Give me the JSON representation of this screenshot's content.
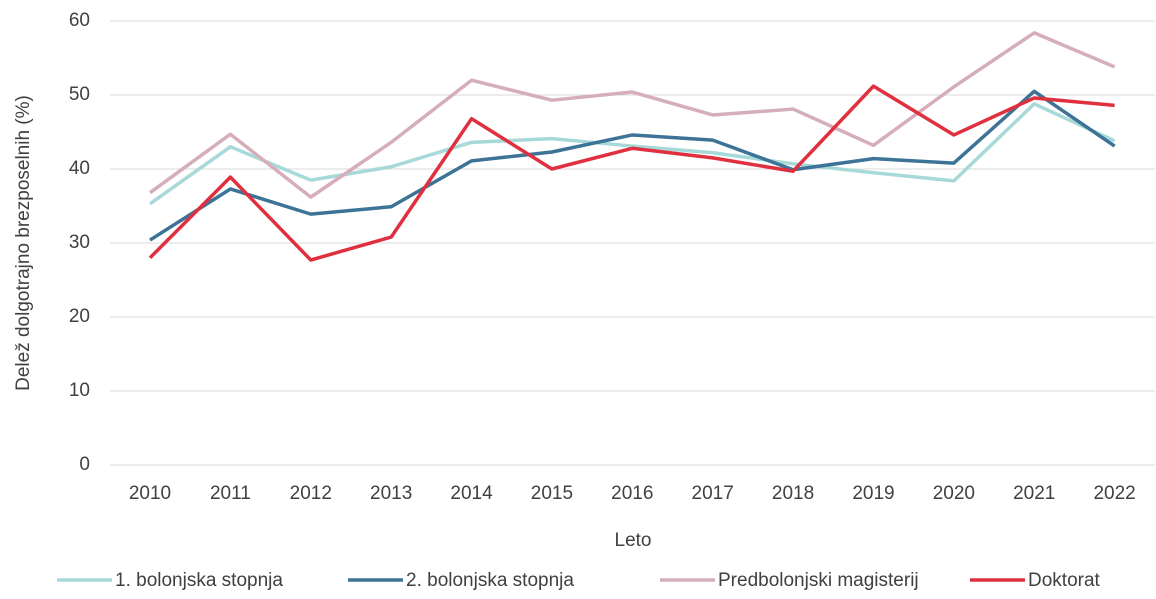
{
  "chart_data": {
    "type": "line",
    "y_label": "Delež dolgotrajno brezposelnih (%)",
    "x_label": "Leto",
    "categories": [
      "2010",
      "2011",
      "2012",
      "2013",
      "2014",
      "2015",
      "2016",
      "2017",
      "2018",
      "2019",
      "2020",
      "2021",
      "2022"
    ],
    "series": [
      {
        "name": "1. bolonjska stopnja",
        "color": "#a6d9d8",
        "values": [
          35.3,
          43.0,
          38.5,
          40.3,
          43.6,
          44.1,
          43.1,
          42.2,
          40.7,
          39.5,
          38.4,
          48.8,
          43.8
        ]
      },
      {
        "name": "2. bolonjska stopnja",
        "color": "#3c7396",
        "values": [
          30.4,
          37.3,
          33.9,
          34.9,
          41.1,
          42.3,
          44.6,
          43.9,
          39.9,
          41.4,
          40.8,
          50.5,
          43.1
        ]
      },
      {
        "name": "Predbolonjski magisterij",
        "color": "#d5adbb",
        "values": [
          36.8,
          44.7,
          36.2,
          43.6,
          52.0,
          49.3,
          50.4,
          47.3,
          48.1,
          43.2,
          51.1,
          58.4,
          53.8
        ]
      },
      {
        "name": "Doktorat",
        "color": "#e0303f",
        "values": [
          28.0,
          38.9,
          27.7,
          30.8,
          46.8,
          40.0,
          42.8,
          41.5,
          39.7,
          51.2,
          44.6,
          49.6,
          48.6
        ]
      }
    ],
    "ylim": [
      0,
      60
    ],
    "yticks": [
      0,
      10,
      20,
      30,
      40,
      50,
      60
    ],
    "grid": true,
    "legend": "bottom"
  }
}
